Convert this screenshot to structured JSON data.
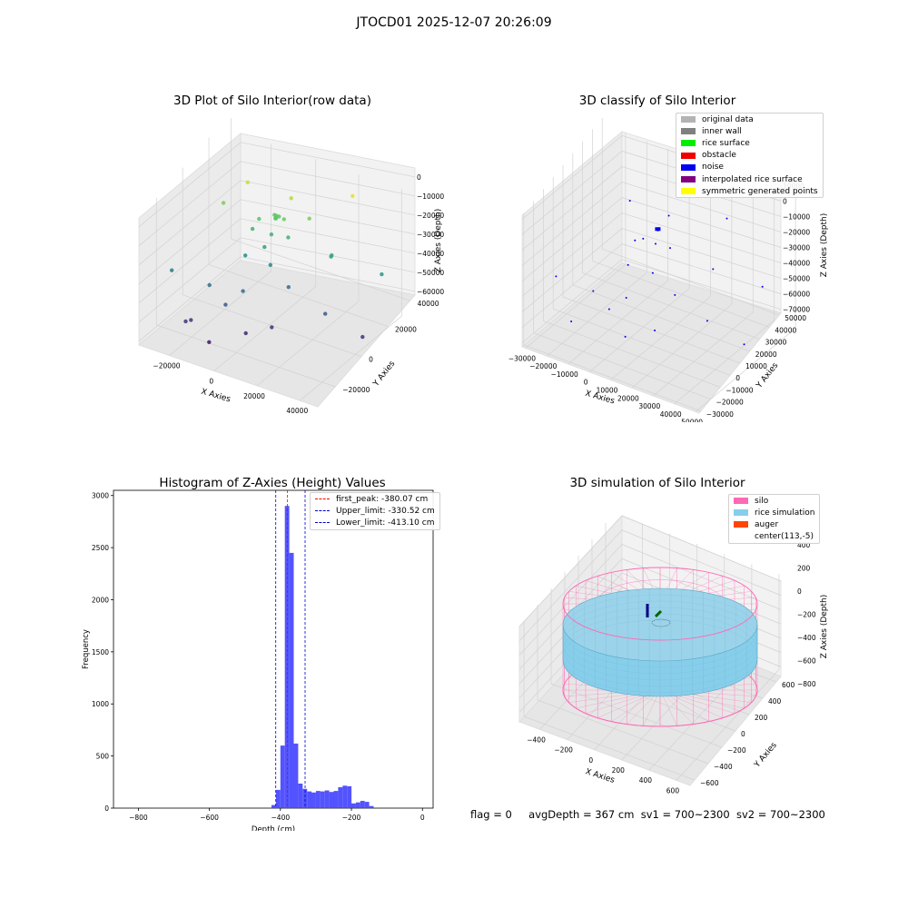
{
  "suptitle": "JTOCD01 2025-12-07 20:26:09",
  "footer": {
    "flag": "flag = 0",
    "avg": "avgDepth = 367 cm",
    "sv1": "sv1 = 700~2300",
    "sv2": "sv2 = 700~2300"
  },
  "chart_data": [
    {
      "type": "scatter",
      "title": "3D Plot of Silo Interior(row data)",
      "xlabel": "X Axies",
      "ylabel": "Y Axies",
      "zlabel": "Z Axies (Depth)",
      "x_ticks": [
        "−20000",
        "0",
        "20000",
        "40000"
      ],
      "y_ticks": [
        "−20000",
        "0",
        "20000",
        "40000"
      ],
      "z_ticks": [
        "0",
        "−10000",
        "−20000",
        "−30000",
        "−40000",
        "−50000",
        "−60000"
      ],
      "colormap": "viridis",
      "xlim": [
        -32000,
        55000
      ],
      "ylim": [
        -30000,
        55000
      ],
      "zlim": [
        -66000,
        2000
      ],
      "points": [
        {
          "x": -14000,
          "y": 30000,
          "z": -4000
        },
        {
          "x": 6000,
          "y": 32000,
          "z": -6000
        },
        {
          "x": 30000,
          "y": 42000,
          "z": -1000
        },
        {
          "x": -20000,
          "y": 20000,
          "z": -12000
        },
        {
          "x": 200,
          "y": 28000,
          "z": -15000
        },
        {
          "x": 800,
          "y": 28500,
          "z": -15500
        },
        {
          "x": 1200,
          "y": 27000,
          "z": -16000
        },
        {
          "x": 1800,
          "y": 29000,
          "z": -15800
        },
        {
          "x": 1000,
          "y": 27800,
          "z": -16500
        },
        {
          "x": 6000,
          "y": 26000,
          "z": -14000
        },
        {
          "x": 16000,
          "y": 30000,
          "z": -12000
        },
        {
          "x": -5000,
          "y": 24000,
          "z": -17000
        },
        {
          "x": -7000,
          "y": 22000,
          "z": -22000
        },
        {
          "x": 1000,
          "y": 24000,
          "z": -23000
        },
        {
          "x": 8000,
          "y": 26000,
          "z": -23000
        },
        {
          "x": 28000,
          "y": 28000,
          "z": -26000
        },
        {
          "x": 28000,
          "y": 27500,
          "z": -26500
        },
        {
          "x": 50000,
          "y": 32000,
          "z": -30000
        },
        {
          "x": 0,
          "y": 20000,
          "z": -28000
        },
        {
          "x": -7000,
          "y": 16000,
          "z": -33000
        },
        {
          "x": 4000,
          "y": 18000,
          "z": -35000
        },
        {
          "x": 14000,
          "y": 16000,
          "z": -42000
        },
        {
          "x": -30000,
          "y": -6000,
          "z": -38000
        },
        {
          "x": -14000,
          "y": -2000,
          "z": -42000
        },
        {
          "x": 0,
          "y": 2000,
          "z": -42000
        },
        {
          "x": 33000,
          "y": 14000,
          "z": -48000
        },
        {
          "x": -5000,
          "y": -4000,
          "z": -48000
        },
        {
          "x": 50000,
          "y": 16000,
          "z": -55000
        },
        {
          "x": -16000,
          "y": -14000,
          "z": -55000
        },
        {
          "x": -18000,
          "y": -15000,
          "z": -56000
        },
        {
          "x": 14000,
          "y": 2000,
          "z": -56000
        },
        {
          "x": 6000,
          "y": -6000,
          "z": -58000
        },
        {
          "x": -6000,
          "y": -16000,
          "z": -62000
        }
      ]
    },
    {
      "type": "scatter",
      "title": "3D classify of Silo Interior",
      "xlabel": "X Axies",
      "ylabel": "Y Axies",
      "zlabel": "Z Axies (Depth)",
      "x_ticks": [
        "−30000",
        "−20000",
        "−10000",
        "0",
        "10000",
        "20000",
        "30000",
        "40000",
        "50000"
      ],
      "y_ticks": [
        "−30000",
        "−20000",
        "−10000",
        "0",
        "10000",
        "20000",
        "30000",
        "40000",
        "50000"
      ],
      "z_ticks": [
        "10000",
        "0",
        "−10000",
        "−20000",
        "−30000",
        "−40000",
        "−50000",
        "−60000",
        "−70000"
      ],
      "legend": [
        {
          "label": "original data",
          "color": "#b3b3b3"
        },
        {
          "label": "inner wall",
          "color": "#808080"
        },
        {
          "label": "rice surface",
          "color": "#00ee00"
        },
        {
          "label": "obstacle",
          "color": "#ee0000"
        },
        {
          "label": "noise",
          "color": "#0000ee"
        },
        {
          "label": "interpolated rice surface",
          "color": "#800080"
        },
        {
          "label": "symmetric generated points",
          "color": "#ffff00"
        }
      ],
      "xlim": [
        -32000,
        55000
      ],
      "ylim": [
        -32000,
        55000
      ],
      "zlim": [
        -72000,
        12000
      ],
      "points": [
        {
          "x": -14000,
          "y": 30000,
          "z": -8000
        },
        {
          "x": 4000,
          "y": 32000,
          "z": -10000
        },
        {
          "x": 28000,
          "y": 40000,
          "z": -5000
        },
        {
          "x": 0,
          "y": 28000,
          "z": -18000
        },
        {
          "x": 400,
          "y": 28500,
          "z": -18200
        },
        {
          "x": 900,
          "y": 28000,
          "z": -18500
        },
        {
          "x": 600,
          "y": 29000,
          "z": -17800
        },
        {
          "x": -7000,
          "y": 22000,
          "z": -25000
        },
        {
          "x": 8000,
          "y": 26000,
          "z": -25000
        },
        {
          "x": 28000,
          "y": 28000,
          "z": -30000
        },
        {
          "x": 50000,
          "y": 32000,
          "z": -33000
        },
        {
          "x": -3000,
          "y": 22000,
          "z": -22000
        },
        {
          "x": 2000,
          "y": 24000,
          "z": -24000
        },
        {
          "x": -7000,
          "y": 16000,
          "z": -37000
        },
        {
          "x": 4000,
          "y": 18000,
          "z": -38000
        },
        {
          "x": 16000,
          "y": 16000,
          "z": -45000
        },
        {
          "x": -30000,
          "y": -6000,
          "z": -42000
        },
        {
          "x": -14000,
          "y": -2000,
          "z": -46000
        },
        {
          "x": 0,
          "y": 2000,
          "z": -46000
        },
        {
          "x": 33000,
          "y": 14000,
          "z": -52000
        },
        {
          "x": -5000,
          "y": -4000,
          "z": -52000
        },
        {
          "x": 50000,
          "y": 16000,
          "z": -60000
        },
        {
          "x": -18000,
          "y": -14000,
          "z": -60000
        },
        {
          "x": 14000,
          "y": 2000,
          "z": -60000
        },
        {
          "x": 4000,
          "y": -6000,
          "z": -64000
        }
      ]
    },
    {
      "type": "bar",
      "title": "Histogram of Z-Axies (Height) Values",
      "xlabel": "Depth (cm)",
      "ylabel": "Frequency",
      "x_ticks": [
        "−800",
        "−600",
        "−400",
        "−200",
        "0"
      ],
      "y_ticks": [
        "0",
        "500",
        "1000",
        "1500",
        "2000",
        "2500",
        "3000"
      ],
      "xlim": [
        -870,
        30
      ],
      "ylim": [
        0,
        3050
      ],
      "bin_width": 12.5,
      "bins": [
        {
          "x": -425,
          "value": 30
        },
        {
          "x": -412.5,
          "value": 175
        },
        {
          "x": -400,
          "value": 600
        },
        {
          "x": -387.5,
          "value": 2900
        },
        {
          "x": -375,
          "value": 2450
        },
        {
          "x": -362.5,
          "value": 620
        },
        {
          "x": -350,
          "value": 235
        },
        {
          "x": -337.5,
          "value": 185
        },
        {
          "x": -325,
          "value": 160
        },
        {
          "x": -312.5,
          "value": 150
        },
        {
          "x": -300,
          "value": 165
        },
        {
          "x": -287.5,
          "value": 160
        },
        {
          "x": -275,
          "value": 170
        },
        {
          "x": -262.5,
          "value": 155
        },
        {
          "x": -250,
          "value": 165
        },
        {
          "x": -237.5,
          "value": 200
        },
        {
          "x": -225,
          "value": 215
        },
        {
          "x": -212.5,
          "value": 210
        },
        {
          "x": -200,
          "value": 45
        },
        {
          "x": -187.5,
          "value": 55
        },
        {
          "x": -175,
          "value": 70
        },
        {
          "x": -162.5,
          "value": 60
        },
        {
          "x": -150,
          "value": 20
        }
      ],
      "vlines": [
        {
          "label": "first_peak: -380.07 cm",
          "value": -380.07,
          "color": "#ff0000"
        },
        {
          "label": "Upper_limit: -330.52 cm",
          "value": -330.52,
          "color": "#0000cc"
        },
        {
          "label": "Lower_limit: -413.10 cm",
          "value": -413.1,
          "color": "#0000cc"
        }
      ],
      "bar_color": "#4040ff"
    },
    {
      "type": "surface",
      "title": "3D simulation of Silo Interior",
      "xlabel": "X Axies",
      "ylabel": "Y Axies",
      "zlabel": "Z Axies (Depth)",
      "x_ticks": [
        "−400",
        "−200",
        "0",
        "200",
        "400",
        "600"
      ],
      "y_ticks": [
        "−600",
        "−400",
        "−200",
        "0",
        "200",
        "400",
        "600"
      ],
      "z_ticks": [
        "400",
        "200",
        "0",
        "−200",
        "−400",
        "−600",
        "−800"
      ],
      "legend": [
        {
          "label": "silo",
          "color": "#ff69b4"
        },
        {
          "label": "rice simulation",
          "color": "#87ceeb"
        },
        {
          "label": "auger",
          "color": "#ff4500"
        },
        {
          "label": "center(113,-5)",
          "color": "none"
        }
      ],
      "silo_color": "#ff69b4",
      "rice_color": "#87ceeb",
      "rice_level": -367
    }
  ]
}
